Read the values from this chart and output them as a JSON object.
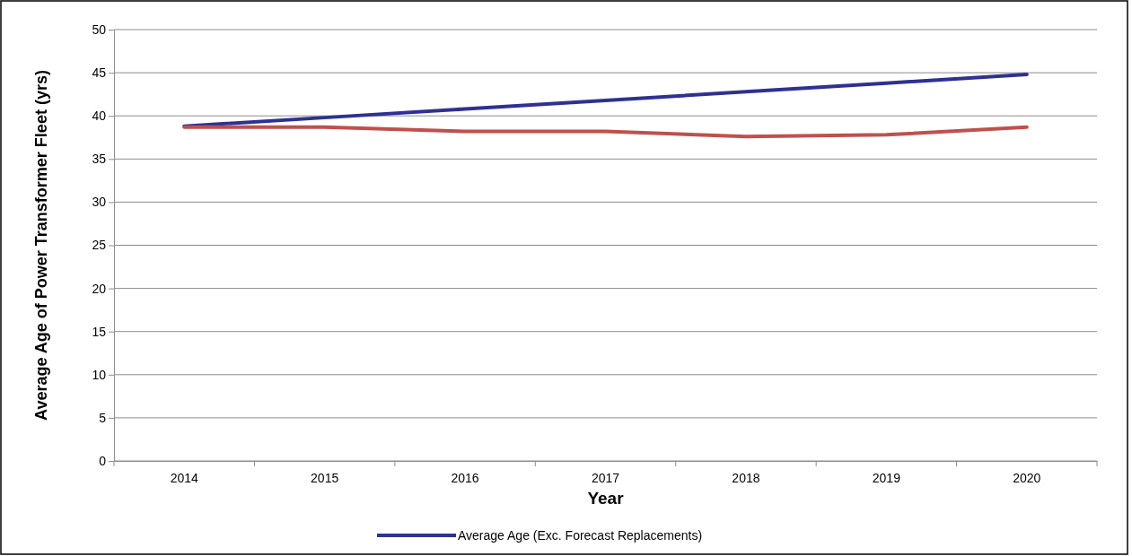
{
  "chart_data": {
    "type": "line",
    "xlabel": "Year",
    "ylabel": "Average Age of Power Transformer Fleet (yrs)",
    "categories": [
      "2014",
      "2015",
      "2016",
      "2017",
      "2018",
      "2019",
      "2020"
    ],
    "series": [
      {
        "name": "Average Age (Exc. Forecast Replacements)",
        "color": "#2e3192",
        "values": [
          38.8,
          39.8,
          40.8,
          41.8,
          42.8,
          43.8,
          44.8
        ]
      },
      {
        "color": "#c0504d",
        "values": [
          38.7,
          38.7,
          38.2,
          38.2,
          37.6,
          37.8,
          38.7
        ]
      }
    ],
    "ylim": [
      0,
      50
    ],
    "yticks": [
      0,
      5,
      10,
      15,
      20,
      25,
      30,
      35,
      40,
      45,
      50
    ],
    "grid": "y",
    "legend": "bottom",
    "marker": "none",
    "line_style": "solid"
  }
}
